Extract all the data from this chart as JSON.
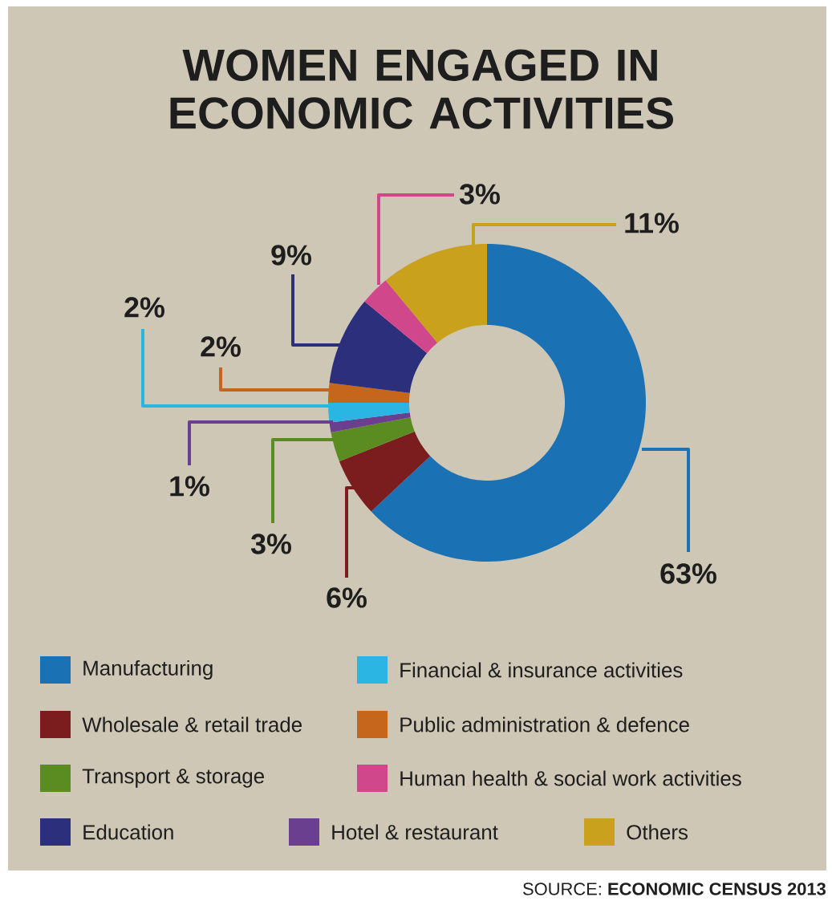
{
  "chart_data": {
    "type": "donut",
    "title": "WOMEN ENGAGED IN ECONOMIC ACTIVITIES",
    "categories": [
      "Manufacturing",
      "Wholesale & retail trade",
      "Transport & storage",
      "Hotel & restaurant",
      "Financial & insurance activities",
      "Public administration & defence",
      "Education",
      "Human health & social work activities",
      "Others"
    ],
    "values": [
      63,
      6,
      3,
      1,
      2,
      2,
      9,
      3,
      11
    ],
    "value_labels": [
      "63%",
      "6%",
      "3%",
      "1%",
      "2%",
      "2%",
      "9%",
      "3%",
      "11%"
    ],
    "colors": [
      "#1a72b5",
      "#7b1c1f",
      "#5a8c22",
      "#6b3f8f",
      "#2bb5e2",
      "#c6661c",
      "#2b2f7c",
      "#d1478b",
      "#c9a11d"
    ],
    "legend": "bottom",
    "annotations": [
      "SOURCE: **ECONOMIC CENSUS 2013**"
    ]
  }
}
